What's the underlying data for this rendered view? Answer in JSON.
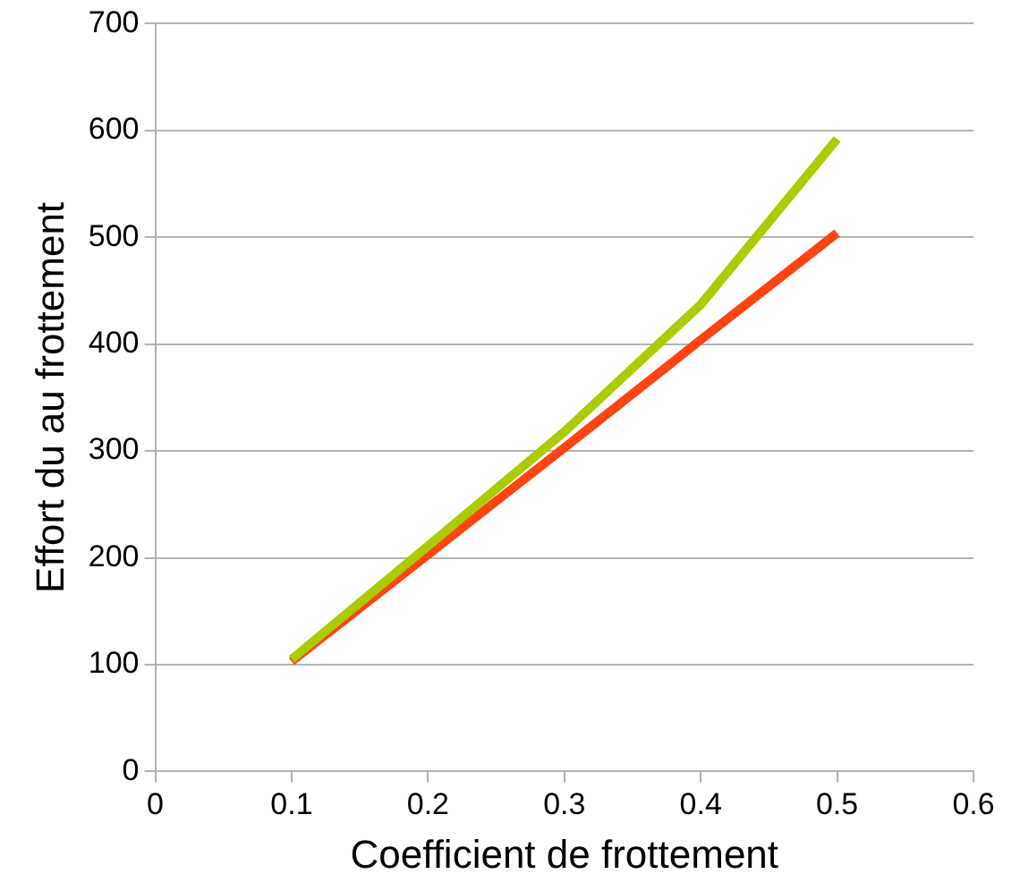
{
  "chart_data": {
    "type": "line",
    "xlabel": "Coefficient de frottement",
    "ylabel": "Effort du au frottement",
    "x": [
      0.1,
      0.2,
      0.3,
      0.4,
      0.5
    ],
    "series": [
      {
        "color": "#aacc00",
        "values": [
          105,
          211,
          318,
          437,
          592
        ]
      },
      {
        "color": "#ff4411",
        "values": [
          103,
          203,
          303,
          404,
          504
        ]
      }
    ],
    "xlim": [
      0,
      0.6
    ],
    "xticks": [
      0,
      0.1,
      0.2,
      0.3,
      0.4,
      0.5,
      0.6
    ],
    "ylim": [
      0,
      700
    ],
    "yticks": [
      0,
      100,
      200,
      300,
      400,
      500,
      600,
      700
    ],
    "grid": "y",
    "marker": "none",
    "line_style": "solid"
  }
}
